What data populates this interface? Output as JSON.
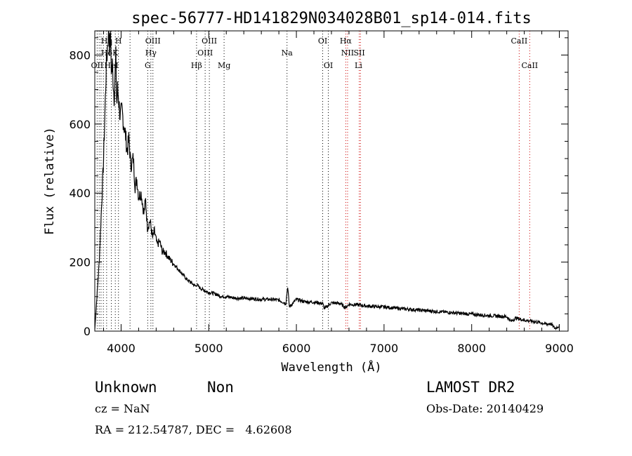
{
  "chart_data": {
    "type": "line",
    "title": "spec-56777-HD141829N034028B01_sp14-014.fits",
    "xlabel": "Wavelength (Å)",
    "ylabel": "Flux (relative)",
    "xlim": [
      3700,
      9100
    ],
    "ylim": [
      0,
      870
    ],
    "xticks": [
      4000,
      5000,
      6000,
      7000,
      8000,
      9000
    ],
    "yticks": [
      0,
      200,
      400,
      600,
      800
    ],
    "x_minor_step": 200,
    "y_minor_step": 50,
    "grid": false,
    "series": [
      {
        "color": "#000000",
        "x": [
          3700,
          3750,
          3800,
          3830,
          3850,
          3860,
          3870,
          3880,
          3890,
          3900,
          3920,
          3940,
          3950,
          3960,
          3970,
          3990,
          4010,
          4030,
          4050,
          4070,
          4090,
          4110,
          4140,
          4160,
          4180,
          4200,
          4230,
          4260,
          4280,
          4300,
          4330,
          4360,
          4380,
          4410,
          4440,
          4470,
          4500,
          4550,
          4600,
          4650,
          4700,
          4750,
          4800,
          4850,
          4860,
          4900,
          4950,
          5000,
          5050,
          5100,
          5150,
          5200,
          5300,
          5400,
          5500,
          5600,
          5700,
          5800,
          5880,
          5900,
          5920,
          6000,
          6100,
          6200,
          6300,
          6320,
          6400,
          6500,
          6560,
          6600,
          6700,
          6800,
          6900,
          7000,
          7200,
          7400,
          7600,
          7800,
          8000,
          8200,
          8400,
          8450,
          8500,
          8600,
          8700,
          8800,
          8850,
          8900,
          8950,
          9000
        ],
        "values": [
          5,
          200,
          500,
          760,
          850,
          880,
          820,
          860,
          740,
          770,
          680,
          790,
          650,
          700,
          680,
          620,
          640,
          600,
          570,
          520,
          560,
          480,
          500,
          420,
          440,
          390,
          400,
          340,
          380,
          300,
          320,
          270,
          290,
          250,
          260,
          230,
          230,
          210,
          195,
          180,
          165,
          150,
          140,
          130,
          135,
          125,
          118,
          112,
          110,
          105,
          100,
          100,
          96,
          95,
          94,
          92,
          92,
          90,
          80,
          130,
          70,
          92,
          85,
          84,
          80,
          65,
          82,
          80,
          68,
          78,
          76,
          73,
          71,
          70,
          65,
          61,
          57,
          53,
          49,
          45,
          42,
          28,
          38,
          32,
          28,
          24,
          20,
          22,
          8,
          15
        ]
      }
    ],
    "line_labels": [
      {
        "text": "Hη",
        "x": 3835,
        "row": 0
      },
      {
        "text": "H",
        "x": 3970,
        "row": 0
      },
      {
        "text": "OIII",
        "x": 4363,
        "row": 0
      },
      {
        "text": "OIII",
        "x": 5007,
        "row": 0
      },
      {
        "text": "OI",
        "x": 6300,
        "row": 0
      },
      {
        "text": "Hα",
        "x": 6563,
        "row": 0
      },
      {
        "text": "CaII",
        "x": 8542,
        "row": 0
      },
      {
        "text": "Hδ",
        "x": 3835,
        "row": 1
      },
      {
        "text": "K",
        "x": 3934,
        "row": 1
      },
      {
        "text": "Hγ",
        "x": 4340,
        "row": 1
      },
      {
        "text": "OIII",
        "x": 4959,
        "row": 1
      },
      {
        "text": "Na",
        "x": 5893,
        "row": 1
      },
      {
        "text": "NII",
        "x": 6584,
        "row": 1
      },
      {
        "text": "SII",
        "x": 6717,
        "row": 1
      },
      {
        "text": "OII",
        "x": 3727,
        "row": 2
      },
      {
        "text": "HeI",
        "x": 3889,
        "row": 2
      },
      {
        "text": "G",
        "x": 4304,
        "row": 2
      },
      {
        "text": "Hβ",
        "x": 4861,
        "row": 2
      },
      {
        "text": "Mg",
        "x": 5175,
        "row": 2
      },
      {
        "text": "OI",
        "x": 6364,
        "row": 2
      },
      {
        "text": "Li",
        "x": 6708,
        "row": 2
      },
      {
        "text": "CaII",
        "x": 8662,
        "row": 2
      }
    ],
    "line_markers": [
      {
        "x": 3727,
        "color": "#000000"
      },
      {
        "x": 3750,
        "color": "#000000"
      },
      {
        "x": 3771,
        "color": "#000000"
      },
      {
        "x": 3798,
        "color": "#000000"
      },
      {
        "x": 3835,
        "color": "#000000"
      },
      {
        "x": 3889,
        "color": "#000000"
      },
      {
        "x": 3934,
        "color": "#000000"
      },
      {
        "x": 3970,
        "color": "#000000"
      },
      {
        "x": 4102,
        "color": "#000000"
      },
      {
        "x": 4304,
        "color": "#000000"
      },
      {
        "x": 4340,
        "color": "#000000"
      },
      {
        "x": 4363,
        "color": "#000000"
      },
      {
        "x": 4861,
        "color": "#000000"
      },
      {
        "x": 4959,
        "color": "#000000"
      },
      {
        "x": 5007,
        "color": "#000000"
      },
      {
        "x": 5175,
        "color": "#000000"
      },
      {
        "x": 5893,
        "color": "#000000"
      },
      {
        "x": 6300,
        "color": "#000000"
      },
      {
        "x": 6364,
        "color": "#000000"
      },
      {
        "x": 6563,
        "color": "#cc0000"
      },
      {
        "x": 6584,
        "color": "#cc0000"
      },
      {
        "x": 6717,
        "color": "#cc0000"
      },
      {
        "x": 6731,
        "color": "#cc0000"
      },
      {
        "x": 8542,
        "color": "#cc0000"
      },
      {
        "x": 8662,
        "color": "#cc0000"
      }
    ]
  },
  "info": {
    "class_label": "Unknown",
    "subclass_label": "Non",
    "survey": "LAMOST DR2",
    "cz": "cz = NaN",
    "obs_date": "Obs-Date: 20140429",
    "coords": "RA = 212.54787, DEC =   4.62608"
  }
}
